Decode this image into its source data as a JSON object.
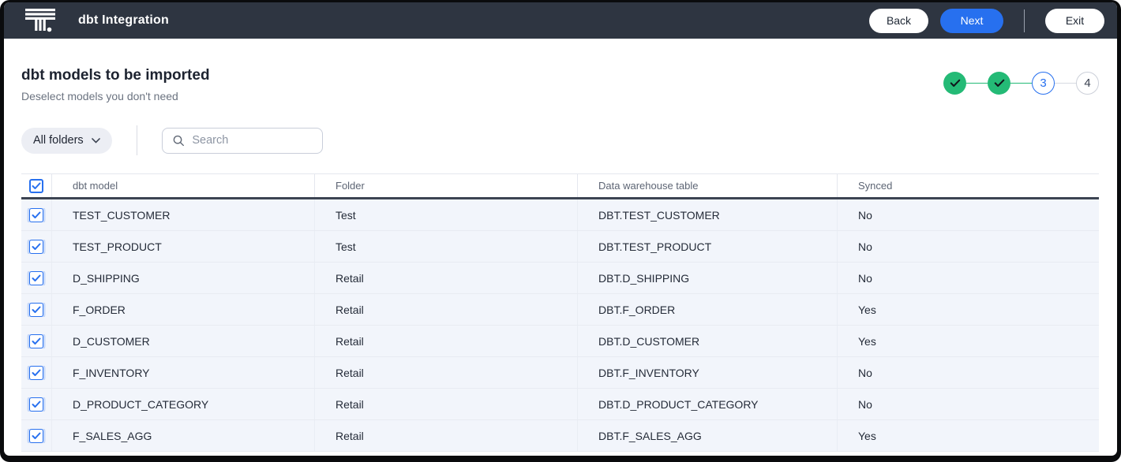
{
  "topbar": {
    "title": "dbt Integration",
    "back_label": "Back",
    "next_label": "Next",
    "exit_label": "Exit"
  },
  "header": {
    "title": "dbt models to be imported",
    "subtitle": "Deselect models you don't need"
  },
  "stepper": {
    "steps": [
      {
        "label": "1",
        "state": "complete"
      },
      {
        "label": "2",
        "state": "complete"
      },
      {
        "label": "3",
        "state": "active"
      },
      {
        "label": "4",
        "state": "upcoming"
      }
    ]
  },
  "filters": {
    "folder_filter_label": "All folders",
    "search_placeholder": "Search"
  },
  "table": {
    "select_all_checked": true,
    "columns": [
      "dbt model",
      "Folder",
      "Data warehouse table",
      "Synced"
    ],
    "rows": [
      {
        "checked": true,
        "model": "TEST_CUSTOMER",
        "folder": "Test",
        "warehouse_table": "DBT.TEST_CUSTOMER",
        "synced": "No"
      },
      {
        "checked": true,
        "model": "TEST_PRODUCT",
        "folder": "Test",
        "warehouse_table": "DBT.TEST_PRODUCT",
        "synced": "No"
      },
      {
        "checked": true,
        "model": "D_SHIPPING",
        "folder": "Retail",
        "warehouse_table": "DBT.D_SHIPPING",
        "synced": "No"
      },
      {
        "checked": true,
        "model": "F_ORDER",
        "folder": "Retail",
        "warehouse_table": "DBT.F_ORDER",
        "synced": "Yes"
      },
      {
        "checked": true,
        "model": "D_CUSTOMER",
        "folder": "Retail",
        "warehouse_table": "DBT.D_CUSTOMER",
        "synced": "Yes"
      },
      {
        "checked": true,
        "model": "F_INVENTORY",
        "folder": "Retail",
        "warehouse_table": "DBT.F_INVENTORY",
        "synced": "No"
      },
      {
        "checked": true,
        "model": "D_PRODUCT_CATEGORY",
        "folder": "Retail",
        "warehouse_table": "DBT.D_PRODUCT_CATEGORY",
        "synced": "No"
      },
      {
        "checked": true,
        "model": "F_SALES_AGG",
        "folder": "Retail",
        "warehouse_table": "DBT.F_SALES_AGG",
        "synced": "Yes"
      }
    ]
  },
  "colors": {
    "accent_blue": "#2770EF",
    "success_green": "#24BA76",
    "topbar_bg": "#2E3541",
    "row_bg": "#F2F5FB",
    "header_border": "#3C4452"
  }
}
